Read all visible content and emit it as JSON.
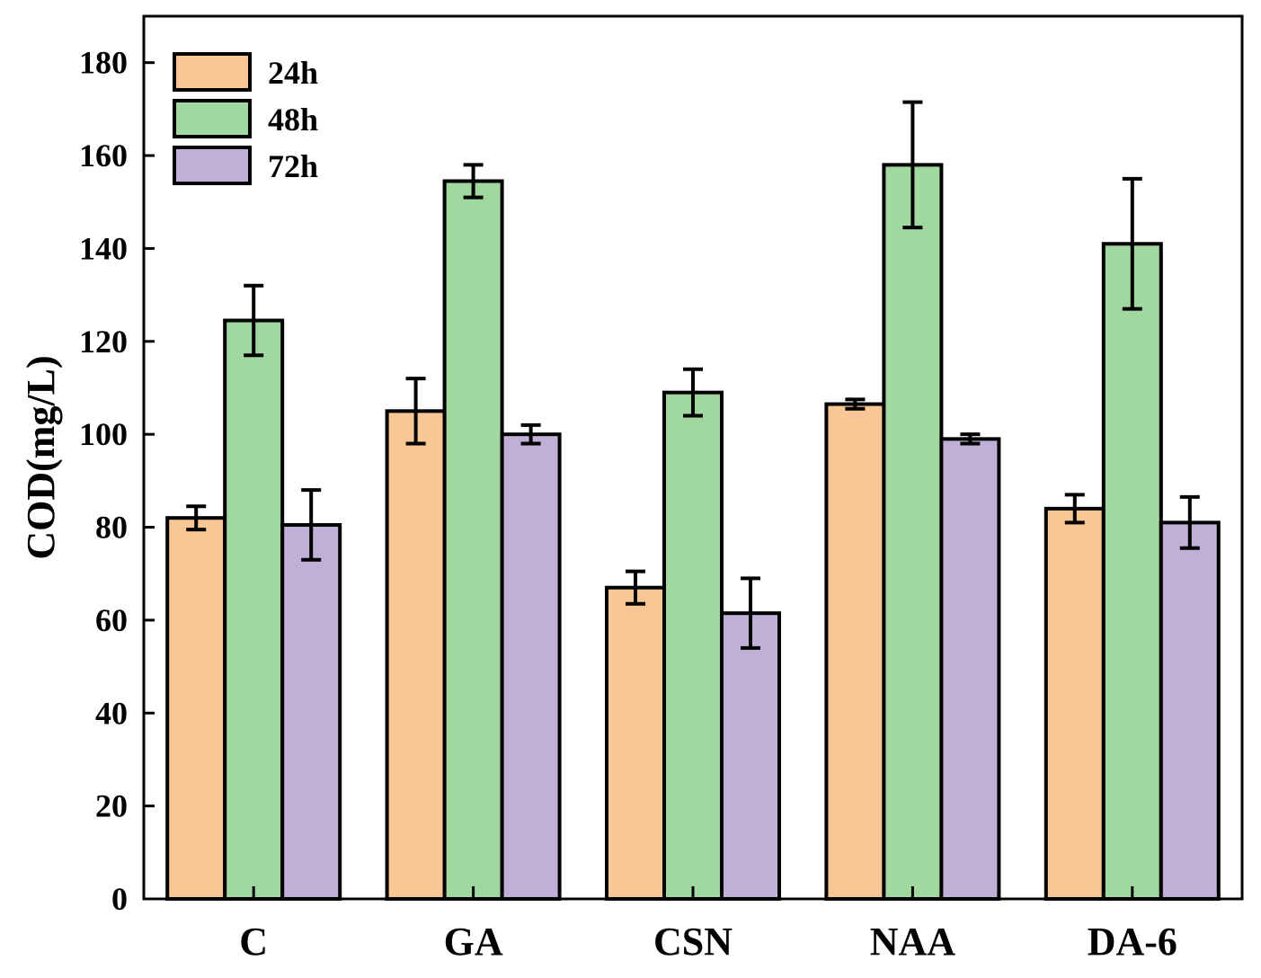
{
  "chart_data": {
    "type": "bar",
    "title": "",
    "xlabel": "",
    "ylabel": "COD(mg/L)",
    "ylim": [
      0,
      190
    ],
    "yticks": [
      0,
      20,
      40,
      60,
      80,
      100,
      120,
      140,
      160,
      180
    ],
    "ytick_labels": [
      "0",
      "20",
      "40",
      "60",
      "80",
      "100",
      "120",
      "140",
      "160",
      "180"
    ],
    "categories": [
      "C",
      "GA",
      "CSN",
      "NAA",
      "DA-6"
    ],
    "legend_position": "top-left",
    "grid": false,
    "series": [
      {
        "name": "24h",
        "color": "#f8c795",
        "values": [
          82,
          105,
          67,
          106.5,
          84
        ],
        "errors": [
          2.5,
          7,
          3.5,
          1,
          3
        ]
      },
      {
        "name": "48h",
        "color": "#a0d8a0",
        "values": [
          124.5,
          154.5,
          109,
          158,
          141
        ],
        "errors": [
          7.5,
          3.5,
          5,
          13.5,
          14
        ]
      },
      {
        "name": "72h",
        "color": "#c0afd6",
        "values": [
          80.5,
          100,
          61.5,
          99,
          81
        ],
        "errors": [
          7.5,
          2,
          7.5,
          1,
          5.5
        ]
      }
    ]
  }
}
